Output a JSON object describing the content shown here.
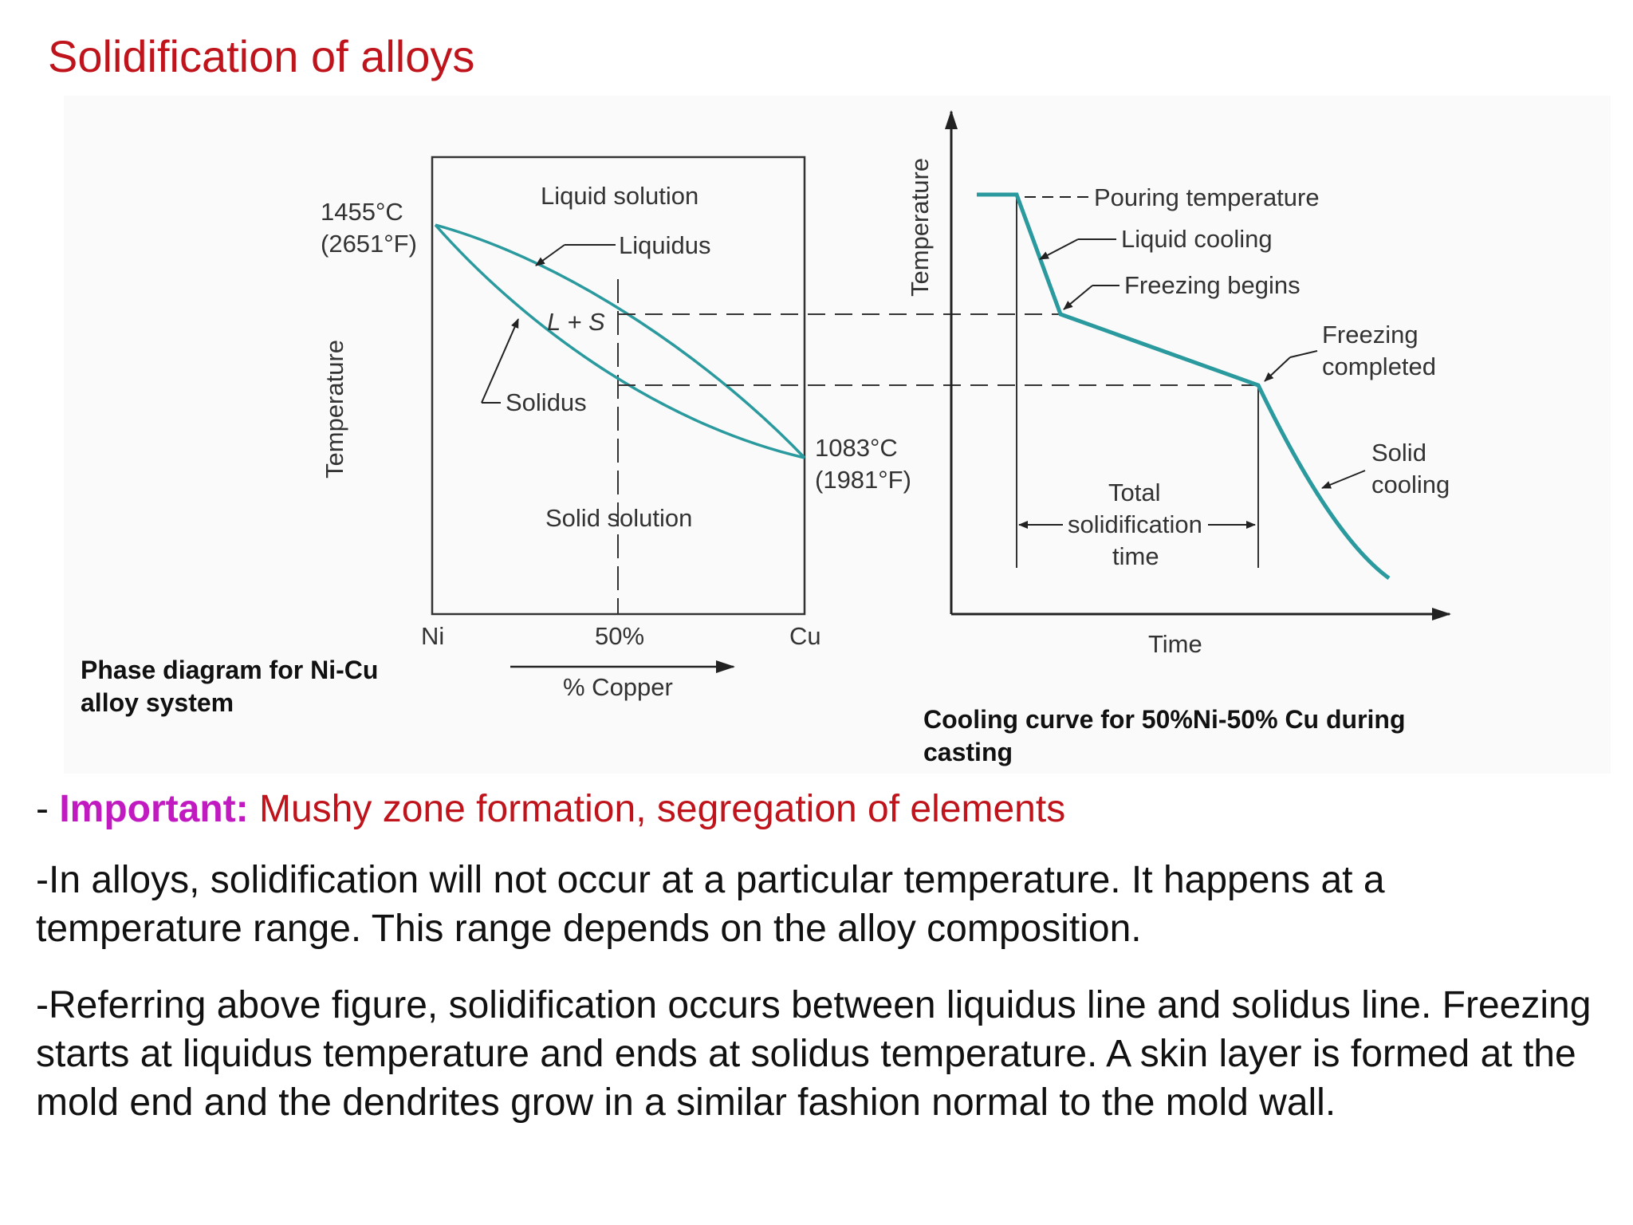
{
  "slide": {
    "title": "Solidification of alloys"
  },
  "phase_diagram": {
    "top_left_temp_c": "1455°C",
    "top_left_temp_f": "(2651°F)",
    "right_temp_c": "1083°C",
    "right_temp_f": "(1981°F)",
    "liquid_label": "Liquid solution",
    "liquidus_label": "Liquidus",
    "ls_label": "L + S",
    "solidus_label": "Solidus",
    "solid_label": "Solid solution",
    "y_axis_label": "Temperature",
    "x_left_label": "Ni",
    "x_mid_label": "50%",
    "x_right_label": "Cu",
    "x_axis_label": "% Copper",
    "caption": "Phase diagram for Ni-Cu alloy system"
  },
  "cooling_curve": {
    "y_axis_label": "Temperature",
    "x_axis_label": "Time",
    "pouring_label": "Pouring temperature",
    "liquid_cooling_label": "Liquid cooling",
    "freezing_begins_label": "Freezing begins",
    "freezing_completed_line1": "Freezing",
    "freezing_completed_line2": "completed",
    "solid_cooling_line1": "Solid",
    "solid_cooling_line2": "cooling",
    "total_line1": "Total",
    "total_line2": "solidification",
    "total_line3": "time",
    "caption": "Cooling curve for 50%Ni-50% Cu during casting"
  },
  "curve_color": "#2a9a9e",
  "text": {
    "p1_lead": "- ",
    "p1_important": "Important:",
    "p1_rest": " Mushy zone formation, segregation of elements",
    "p2": "-In alloys, solidification will not occur at a particular temperature. It happens at a temperature range. This range depends on the alloy composition.",
    "p3": "-Referring above figure, solidification occurs between liquidus line and solidus line. Freezing starts at liquidus temperature and ends at solidus temperature. A skin layer is formed at the mold end and the dendrites grow in a similar fashion normal to the mold wall."
  }
}
